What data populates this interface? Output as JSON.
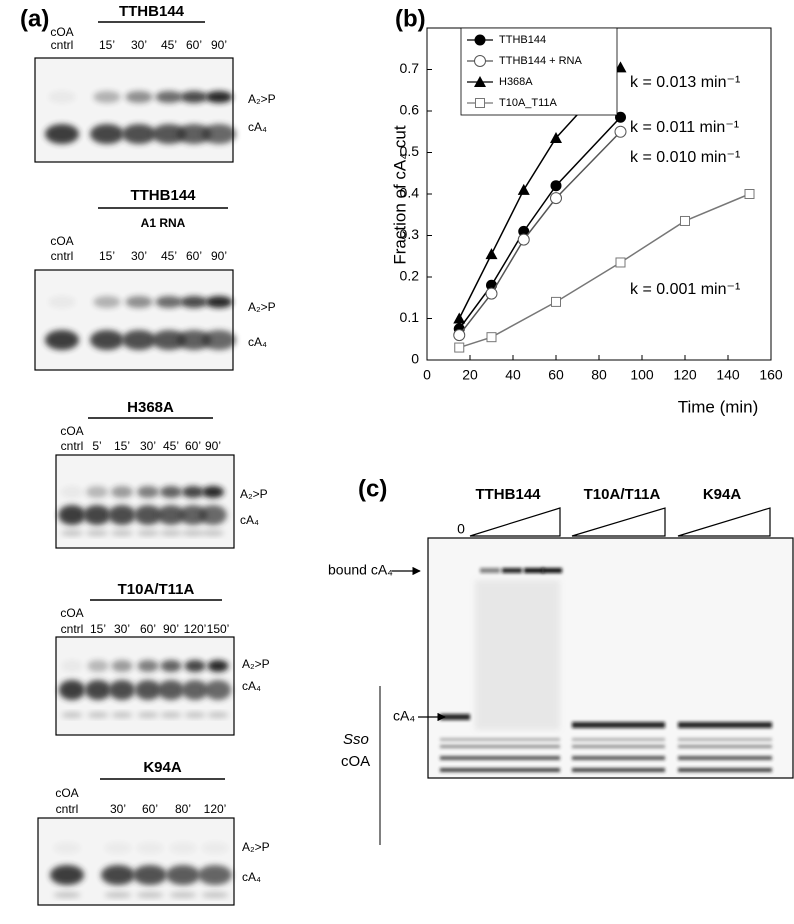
{
  "panel_labels": [
    "(a)",
    "(b)",
    "(c)"
  ],
  "gels_a": [
    {
      "title": "TTHB144",
      "control_label": [
        "cOA",
        "cntrl"
      ],
      "lanes": [
        "15’",
        "30’",
        "45’",
        "60’",
        "90’"
      ],
      "band_labels": [
        "A₂>P",
        "cA₄"
      ]
    },
    {
      "title": "TTHB144",
      "subtitle": "A1 RNA",
      "control_label": [
        "cOA",
        "cntrl"
      ],
      "lanes": [
        "15’",
        "30’",
        "45’",
        "60’",
        "90’"
      ],
      "band_labels": [
        "A₂>P",
        "cA₄"
      ]
    },
    {
      "title": "H368A",
      "control_label": [
        "cOA",
        "cntrl"
      ],
      "lanes": [
        "5’",
        "15’",
        "30’",
        "45’",
        "60’",
        "90’"
      ],
      "band_labels": [
        "A₂>P",
        "cA₄"
      ]
    },
    {
      "title": "T10A/T11A",
      "control_label": [
        "cOA",
        "cntrl"
      ],
      "lanes": [
        "15’",
        "30’",
        "60’",
        "90’",
        "120’",
        "150’"
      ],
      "band_labels": [
        "A₂>P",
        "cA₄"
      ]
    },
    {
      "title": "K94A",
      "control_label": [
        "cOA",
        "cntrl"
      ],
      "lanes": [
        "30’",
        "60’",
        "80’",
        "120’"
      ],
      "band_labels": [
        "A₂>P",
        "cA₄"
      ]
    }
  ],
  "chart_data": {
    "type": "line",
    "xlabel": "Time (min)",
    "ylabel": "Fraction of cA₄ cut",
    "xlim": [
      0,
      160
    ],
    "xticks": [
      0,
      20,
      40,
      60,
      80,
      100,
      120,
      140,
      160
    ],
    "ylim": [
      0,
      0.8
    ],
    "yticks": [
      0,
      0.1,
      0.2,
      0.3,
      0.4,
      0.5,
      0.6,
      0.7
    ],
    "legend": "upper left",
    "series": [
      {
        "name": "TTHB144",
        "color": "#000000",
        "marker": "filled-circle",
        "x": [
          15,
          30,
          45,
          60,
          90
        ],
        "values": [
          0.075,
          0.18,
          0.31,
          0.42,
          0.585
        ]
      },
      {
        "name": "TTHB144 + RNA",
        "color": "#555555",
        "marker": "open-circle",
        "x": [
          15,
          30,
          45,
          60,
          90
        ],
        "values": [
          0.06,
          0.16,
          0.29,
          0.39,
          0.55
        ]
      },
      {
        "name": "H368A",
        "color": "#000000",
        "marker": "filled-triangle",
        "x": [
          15,
          30,
          45,
          60,
          90
        ],
        "values": [
          0.1,
          0.255,
          0.41,
          0.535,
          0.705
        ]
      },
      {
        "name": "T10A_T11A",
        "color": "#777777",
        "marker": "open-square",
        "x": [
          15,
          30,
          60,
          90,
          120,
          150
        ],
        "values": [
          0.03,
          0.055,
          0.14,
          0.235,
          0.335,
          0.4
        ]
      }
    ],
    "annotations": [
      "k = 0.013 min⁻¹",
      "k = 0.011 min⁻¹",
      "k = 0.010 min⁻¹",
      "k = 0.001 min⁻¹"
    ]
  },
  "gel_c": {
    "groups": [
      "TTHB144",
      "T10A/T11A",
      "K94A"
    ],
    "zero_label": "0",
    "bound_label": "bound cA₄",
    "species": "Sso",
    "species_cOA": "cOA",
    "cA4_label": "cA₄"
  }
}
